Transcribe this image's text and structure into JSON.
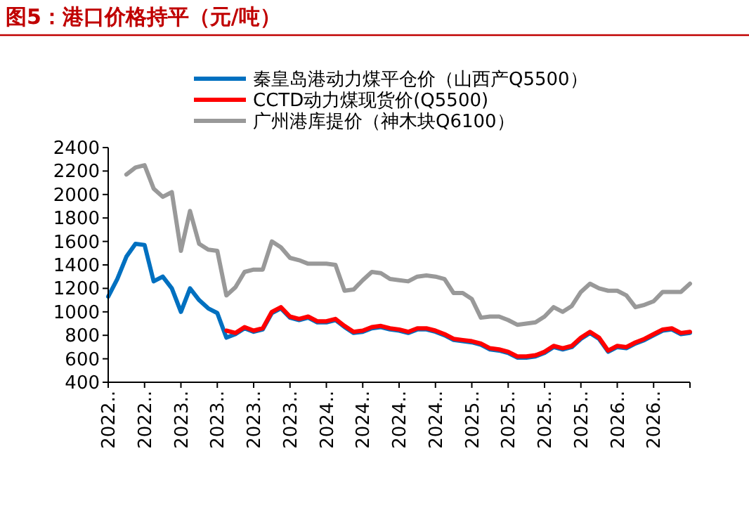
{
  "chart_data": {
    "type": "line",
    "title": "图5：港口价格持平（元/吨）",
    "ylim": [
      400,
      2400
    ],
    "yticks": [
      400,
      600,
      800,
      1000,
      1200,
      1400,
      1600,
      1800,
      2000,
      2200,
      2400
    ],
    "categories": [
      "2022..",
      null,
      null,
      null,
      "2022..",
      null,
      null,
      null,
      "2023..",
      null,
      null,
      null,
      "2023..",
      null,
      null,
      null,
      "2023..",
      null,
      null,
      null,
      "2023..",
      null,
      null,
      null,
      "2024..",
      null,
      null,
      null,
      "2024..",
      null,
      null,
      null,
      "2024..",
      null,
      null,
      null,
      "2024..",
      null,
      null,
      null,
      "2025..",
      null,
      null,
      null,
      "2025..",
      null,
      null,
      null,
      "2025..",
      null,
      null,
      null,
      "2025..",
      null,
      null,
      null,
      "2026..",
      null,
      null,
      null,
      "2026..",
      null,
      null,
      null,
      null
    ],
    "grid": false,
    "legend": "top",
    "marker": "none",
    "line_style": "solid",
    "series": [
      {
        "name": "秦皇岛港动力煤平仓价（山西产Q5500）",
        "color": "#0070c0",
        "values": [
          1130,
          1280,
          1470,
          1580,
          1570,
          1260,
          1300,
          1200,
          1000,
          1200,
          1100,
          1030,
          990,
          780,
          810,
          860,
          830,
          850,
          990,
          1030,
          950,
          930,
          950,
          910,
          910,
          930,
          870,
          820,
          830,
          860,
          870,
          850,
          840,
          820,
          850,
          850,
          830,
          800,
          760,
          750,
          740,
          720,
          680,
          670,
          650,
          610,
          610,
          620,
          650,
          700,
          680,
          700,
          770,
          820,
          770,
          660,
          700,
          690,
          730,
          760,
          800,
          840,
          850,
          810,
          820
        ]
      },
      {
        "name": "CCTD动力煤现货价(Q5500)",
        "color": "#ff0000",
        "values": [
          null,
          null,
          null,
          null,
          null,
          null,
          null,
          null,
          null,
          null,
          null,
          null,
          null,
          840,
          820,
          870,
          840,
          860,
          1000,
          1040,
          960,
          940,
          960,
          920,
          920,
          940,
          880,
          830,
          840,
          870,
          880,
          860,
          850,
          830,
          860,
          860,
          840,
          810,
          770,
          760,
          750,
          730,
          690,
          680,
          660,
          620,
          620,
          630,
          660,
          710,
          690,
          710,
          780,
          830,
          780,
          670,
          710,
          700,
          740,
          770,
          810,
          850,
          860,
          820,
          830
        ]
      },
      {
        "name": "广州港库提价（神木块Q6100）",
        "color": "#999999",
        "values": [
          null,
          null,
          2170,
          2230,
          2250,
          2050,
          1980,
          2020,
          1520,
          1860,
          1580,
          1530,
          1520,
          1140,
          1210,
          1340,
          1360,
          1360,
          1600,
          1550,
          1460,
          1440,
          1410,
          1410,
          1410,
          1400,
          1180,
          1190,
          1270,
          1340,
          1330,
          1280,
          1270,
          1260,
          1300,
          1310,
          1300,
          1280,
          1160,
          1160,
          1110,
          950,
          960,
          960,
          930,
          890,
          900,
          910,
          960,
          1040,
          1000,
          1050,
          1170,
          1240,
          1200,
          1180,
          1180,
          1140,
          1040,
          1060,
          1090,
          1170,
          1170,
          1170,
          1240
        ]
      }
    ]
  }
}
